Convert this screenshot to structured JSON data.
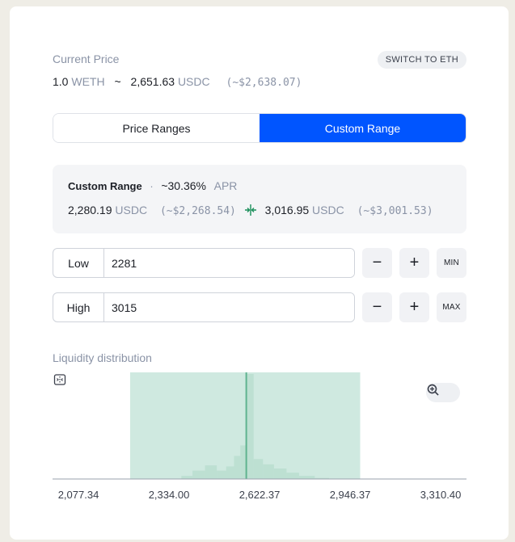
{
  "current_price": {
    "label": "Current Price",
    "switch_label": "SWITCH TO ETH",
    "base_amount": "1.0",
    "base_unit": "WETH",
    "separator": "~",
    "quote_amount": "2,651.63",
    "quote_unit": "USDC",
    "usd_value": "(~$2,638.07)"
  },
  "tabs": [
    {
      "label": "Price Ranges",
      "active": false
    },
    {
      "label": "Custom Range",
      "active": true
    }
  ],
  "summary": {
    "title": "Custom Range",
    "dot": "·",
    "apr_value": "~30.36%",
    "apr_label": "APR",
    "low_amount": "2,280.19",
    "low_unit": "USDC",
    "low_usd": "(~$2,268.54)",
    "high_amount": "3,016.95",
    "high_unit": "USDC",
    "high_usd": "(~$3,001.53)"
  },
  "low_input": {
    "label": "Low",
    "value": "2281",
    "extra_button": "MIN"
  },
  "high_input": {
    "label": "High",
    "value": "3015",
    "extra_button": "MAX"
  },
  "buttons": {
    "minus": "−",
    "plus": "+"
  },
  "liquidity": {
    "label": "Liquidity distribution"
  },
  "colors": {
    "accent": "#0055ff",
    "range_fill": "#cfe9e0",
    "current_line": "#5fb38f",
    "icon_green": "#1a8f5a"
  },
  "chart_data": {
    "type": "area",
    "x_ticks": [
      "2,077.34",
      "2,334.00",
      "2,622.37",
      "2,946.37",
      "3,310.40"
    ],
    "x_range": [
      2077.34,
      3310.4
    ],
    "selected_range": [
      2281,
      3015
    ],
    "current_price": 2651.63,
    "x": [
      2460,
      2500,
      2540,
      2575,
      2600,
      2625,
      2640,
      2660,
      2690,
      2720,
      2760,
      2800,
      2840,
      2900
    ],
    "values": [
      0.03,
      0.08,
      0.13,
      0.08,
      0.12,
      0.22,
      0.32,
      1.0,
      0.19,
      0.14,
      0.1,
      0.06,
      0.03,
      0.01
    ]
  }
}
